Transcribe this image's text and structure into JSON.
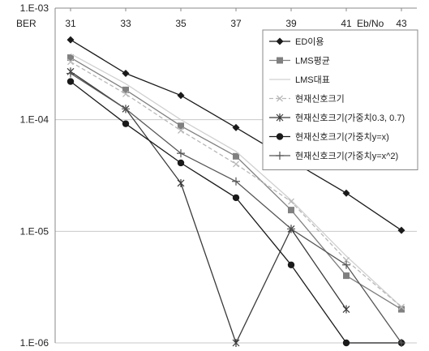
{
  "chart_data": {
    "type": "line",
    "ylabel": "BER",
    "xlabel": "Eb/No",
    "yscale": "log",
    "ylim": [
      1e-06,
      0.001
    ],
    "xlim": [
      31,
      43
    ],
    "x_ticks": [
      "31",
      "33",
      "35",
      "37",
      "39",
      "41",
      "43"
    ],
    "y_ticks": [
      {
        "value": 0.001,
        "label": "1.E-03"
      },
      {
        "value": 0.0001,
        "label": "1.E-04"
      },
      {
        "value": 1e-05,
        "label": "1.E-05"
      },
      {
        "value": 1e-06,
        "label": "1.E-06"
      }
    ],
    "grid": "horizontal",
    "legend_position": "top-right",
    "series": [
      {
        "name": "ED이용",
        "color": "#1a1a1a",
        "marker": "diamond",
        "dash": false,
        "values": [
          0.00052,
          0.00026,
          0.000165,
          8.5e-05,
          4.3e-05,
          2.2e-05,
          1.02e-05
        ]
      },
      {
        "name": "LMS평균",
        "color": "#808080",
        "marker": "square",
        "dash": false,
        "values": [
          0.00036,
          0.000185,
          8.8e-05,
          4.7e-05,
          1.55e-05,
          4e-06,
          2e-06
        ]
      },
      {
        "name": "LMS대표",
        "color": "#d0d0d0",
        "marker": "none",
        "dash": false,
        "values": [
          0.00039,
          0.00021,
          0.0001,
          5.2e-05,
          1.9e-05,
          6e-06,
          2.1e-06
        ]
      },
      {
        "name": "현재신호크기",
        "color": "#b8b8b8",
        "marker": "x",
        "dash": true,
        "values": [
          0.00033,
          0.00017,
          8e-05,
          4e-05,
          1.85e-05,
          5.5e-06,
          2.1e-06
        ]
      },
      {
        "name": "현재신호크기(가중치0.3, 0.7)",
        "color": "#3a3a3a",
        "marker": "star",
        "dash": false,
        "values": [
          0.00027,
          0.000125,
          2.7e-05,
          1e-06,
          1.05e-05,
          2e-06,
          null
        ]
      },
      {
        "name": "현재신호크기(가중치y=x)",
        "color": "#1a1a1a",
        "marker": "circle",
        "dash": false,
        "values": [
          0.00022,
          9.2e-05,
          4.1e-05,
          2e-05,
          5e-06,
          1e-06,
          1e-06
        ]
      },
      {
        "name": "현재신호크기(가중치y=x^2)",
        "color": "#555555",
        "marker": "plus",
        "dash": false,
        "values": [
          0.00026,
          0.000125,
          5e-05,
          2.8e-05,
          1.05e-05,
          5e-06,
          1e-06
        ]
      }
    ]
  }
}
